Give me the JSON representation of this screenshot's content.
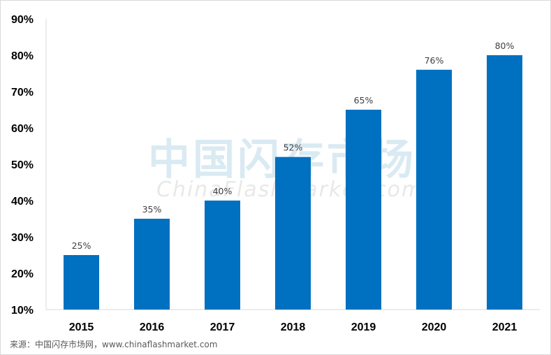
{
  "chart_data": {
    "type": "bar",
    "categories": [
      "2015",
      "2016",
      "2017",
      "2018",
      "2019",
      "2020",
      "2021"
    ],
    "values": [
      25,
      35,
      40,
      52,
      65,
      76,
      80
    ],
    "data_labels": [
      "25%",
      "35%",
      "40%",
      "52%",
      "65%",
      "76%",
      "80%"
    ],
    "ylim": [
      10,
      90
    ],
    "yticks": [
      "10%",
      "20%",
      "30%",
      "40%",
      "50%",
      "60%",
      "70%",
      "80%",
      "90%"
    ],
    "ytick_values": [
      10,
      20,
      30,
      40,
      50,
      60,
      70,
      80,
      90
    ],
    "grid": false,
    "bar_color": "#0070C0"
  },
  "source": "来源：中国闪存市场网，www.chinaflashmarket.com",
  "watermark": {
    "cn": "中国闪存市场",
    "en": "ChinaFlashMarket.com"
  }
}
